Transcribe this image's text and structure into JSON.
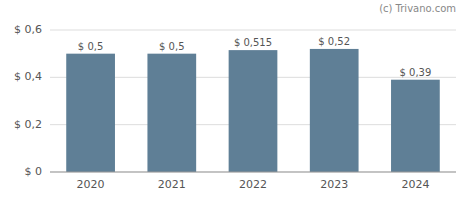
{
  "chart_data": {
    "type": "bar",
    "categories": [
      "2020",
      "2021",
      "2022",
      "2023",
      "2024"
    ],
    "values": [
      0.5,
      0.5,
      0.515,
      0.52,
      0.39
    ],
    "value_labels": [
      "$ 0,5",
      "$ 0,5",
      "$ 0,515",
      "$ 0,52",
      "$ 0,39"
    ],
    "data_labels": true,
    "color": "#5f7f96",
    "ylim": [
      0,
      0.6
    ],
    "yticks": [
      {
        "value": 0,
        "label": "$ 0"
      },
      {
        "value": 0.2,
        "label": "$ 0,2"
      },
      {
        "value": 0.4,
        "label": "$ 0,4"
      },
      {
        "value": 0.6,
        "label": "$ 0,6"
      }
    ],
    "grid": true,
    "annotations": [
      "(c) Trivano.com"
    ]
  }
}
